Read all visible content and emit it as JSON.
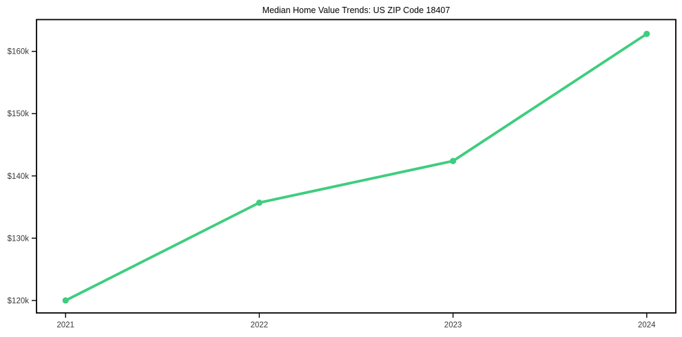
{
  "chart_data": {
    "type": "line",
    "title": "Median Home Value Trends: US ZIP Code 18407",
    "x": [
      2021,
      2022,
      2023,
      2024
    ],
    "x_tick_labels": [
      "2021",
      "2022",
      "2023",
      "2024"
    ],
    "series": [
      {
        "name": "Median Home Value",
        "values": [
          120000,
          135700,
          142400,
          162800
        ],
        "color": "#3ecd7e",
        "marker": "circle"
      }
    ],
    "y_ticks": [
      {
        "value": 120000,
        "label": "$120k"
      },
      {
        "value": 130000,
        "label": "$130k"
      },
      {
        "value": 140000,
        "label": "$140k"
      },
      {
        "value": 150000,
        "label": "$150k"
      },
      {
        "value": 160000,
        "label": "$160k"
      }
    ],
    "xlim": [
      2020.85,
      2024.15
    ],
    "ylim": [
      118000,
      165100
    ],
    "xlabel": "",
    "ylabel": "",
    "grid": false,
    "legend_position": "none",
    "axis_color": "#000000",
    "tick_label_color": "#3a3a3a",
    "background_color": "#ffffff",
    "line_width": 3.8,
    "marker_radius": 4.6
  }
}
